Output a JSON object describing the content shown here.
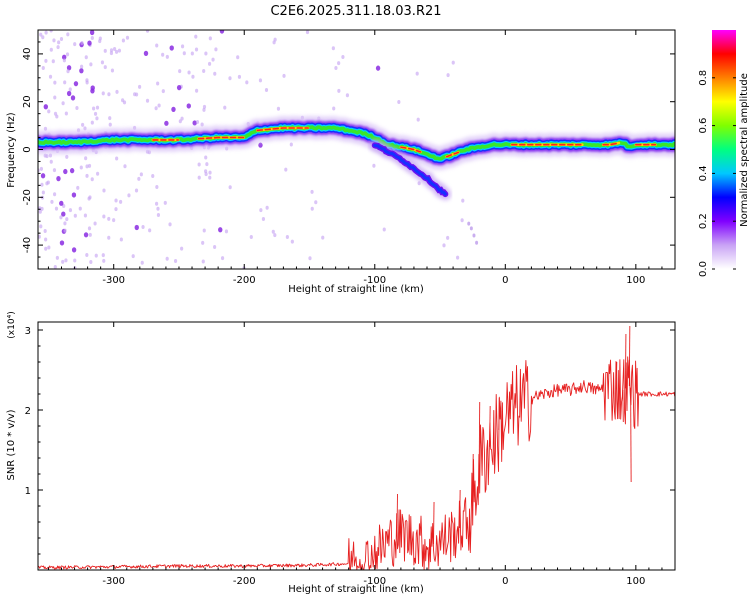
{
  "figure_title": "C2E6.2025.311.18.03.R21",
  "colors": {
    "snr_line": "#e62020",
    "trace_core": "#ff2020",
    "trace_mid": "#39e62a",
    "trace_halo": "#1530ff",
    "scatter": "#8a2be2"
  },
  "chart_data": [
    {
      "type": "heatmap",
      "title": "C2E6.2025.311.18.03.R21",
      "xlabel": "Height of straight line (km)",
      "ylabel": "Frequency (Hz)",
      "xlim": [
        -358,
        130
      ],
      "ylim": [
        -50,
        50
      ],
      "x_ticks": [
        -300,
        -200,
        -100,
        0,
        100
      ],
      "y_ticks": [
        -40,
        -20,
        0,
        20,
        40
      ],
      "colorbar": {
        "label": "Normalized spectral amplitude",
        "range": [
          0,
          1
        ],
        "ticks": [
          0.0,
          0.2,
          0.4,
          0.6,
          0.8
        ],
        "tick_labels": [
          "0.0",
          "0.2",
          "0.4",
          "0.6",
          "0.8"
        ],
        "colormap": [
          "#ffffff",
          "#c9a3f5",
          "#8000ff",
          "#0000ff",
          "#00c8ff",
          "#00ff80",
          "#80ff00",
          "#ffff00",
          "#ff8000",
          "#ff0000",
          "#ff00ff"
        ]
      },
      "main_trace": {
        "x": [
          -358,
          -330,
          -300,
          -270,
          -250,
          -220,
          -200,
          -190,
          -170,
          -150,
          -130,
          -110,
          -100,
          -90,
          -80,
          -70,
          -60,
          -50,
          -40,
          -30,
          -20,
          -10,
          0,
          20,
          40,
          60,
          80,
          90,
          95,
          100,
          110,
          120,
          130
        ],
        "y": [
          3,
          3,
          4,
          4,
          4,
          5,
          5,
          8,
          9,
          9,
          9,
          7,
          5,
          2,
          1,
          0,
          -2,
          -4,
          -2,
          0,
          1,
          2,
          2,
          2,
          2,
          2,
          2,
          3,
          1,
          2,
          2,
          2,
          2
        ]
      },
      "secondary_trace": {
        "x": [
          -100,
          -90,
          -80,
          -70,
          -60,
          -50,
          -45
        ],
        "y": [
          2,
          -1,
          -4,
          -8,
          -12,
          -17,
          -19
        ]
      }
    },
    {
      "type": "line",
      "xlabel": "Height of straight line (km)",
      "ylabel": "SNR (10 * v/v)",
      "multiplier": "(x10⁴)",
      "xlim": [
        -358,
        130
      ],
      "ylim": [
        0,
        3.1
      ],
      "x_ticks": [
        -300,
        -200,
        -100,
        0,
        100
      ],
      "y_ticks": [
        1,
        2,
        3
      ],
      "series": [
        {
          "name": "SNR",
          "x": [
            -358,
            -300,
            -250,
            -200,
            -150,
            -120,
            -105,
            -100,
            -90,
            -80,
            -70,
            -60,
            -50,
            -40,
            -30,
            -25,
            -20,
            -10,
            0,
            10,
            20,
            30,
            40,
            50,
            60,
            70,
            80,
            90,
            95,
            100,
            110,
            120,
            130
          ],
          "y": [
            0.03,
            0.04,
            0.05,
            0.05,
            0.06,
            0.08,
            0.12,
            0.2,
            0.35,
            0.45,
            0.4,
            0.3,
            0.35,
            0.45,
            0.6,
            0.8,
            1.3,
            1.6,
            1.9,
            2.05,
            2.15,
            2.2,
            2.25,
            2.25,
            2.3,
            2.25,
            2.3,
            2.25,
            2.3,
            2.2,
            2.2,
            2.2,
            2.2
          ]
        }
      ],
      "spikes": [
        {
          "x": -83,
          "y": 0.95
        },
        {
          "x": -55,
          "y": 0.85
        },
        {
          "x": -35,
          "y": 1.0
        },
        {
          "x": -25,
          "y": 1.45
        },
        {
          "x": -20,
          "y": 2.1
        },
        {
          "x": -12,
          "y": 2.05
        },
        {
          "x": -5,
          "y": 2.15
        },
        {
          "x": 85,
          "y": 2.6
        },
        {
          "x": 92,
          "y": 2.95
        },
        {
          "x": 95,
          "y": 3.05
        },
        {
          "x": 96,
          "y": 1.1
        },
        {
          "x": 90,
          "y": 1.85
        }
      ]
    }
  ]
}
